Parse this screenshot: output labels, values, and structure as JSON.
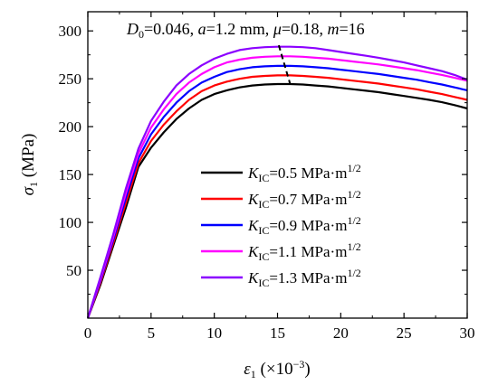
{
  "chart_data": {
    "type": "line",
    "xlabel": {
      "sym": "ε",
      "sub": "1",
      "unit": " (×10",
      "exp": "−3",
      "close": ")"
    },
    "ylabel": {
      "sym": "σ",
      "sub": "1",
      "unit": " (MPa)"
    },
    "xlim": [
      0,
      30
    ],
    "ylim": [
      0,
      320
    ],
    "xticks": [
      0,
      5,
      10,
      15,
      20,
      25,
      30
    ],
    "yticks": [
      50,
      100,
      150,
      200,
      250,
      300
    ],
    "grid": false,
    "legend_position": "center-right",
    "annotation": {
      "d0_sym": "D",
      "d0_sub": "0",
      "d0_val": "=0.046, ",
      "a_sym": "a",
      "a_val": "=1.2 mm, ",
      "mu_sym": "μ",
      "mu_val": "=0.18, ",
      "m_sym": "m",
      "m_val": "=16"
    },
    "legend_template": {
      "sym": "K",
      "sub": "IC",
      "unit": " MPa·m",
      "exp": "1/2"
    },
    "series": [
      {
        "name": "=0.5",
        "color": "#000000",
        "x": [
          0,
          1,
          2,
          3,
          4,
          5,
          6,
          7,
          8,
          9,
          10,
          11,
          12,
          13,
          14,
          15,
          16,
          17,
          18,
          19,
          20,
          21,
          22,
          23,
          24,
          25,
          26,
          27,
          28,
          29,
          30
        ],
        "y": [
          0,
          35,
          75,
          115,
          158,
          178,
          194,
          208,
          219,
          228,
          234,
          238,
          241,
          243,
          244,
          244.5,
          244.5,
          244,
          243,
          242,
          240.5,
          239,
          237.5,
          236,
          234,
          232,
          230,
          228,
          225.5,
          222.5,
          219
        ]
      },
      {
        "name": "=0.7",
        "color": "#ff0000",
        "x": [
          0,
          1,
          2,
          3,
          4,
          5,
          6,
          7,
          8,
          9,
          10,
          11,
          12,
          13,
          14,
          15,
          16,
          17,
          18,
          19,
          20,
          21,
          22,
          23,
          24,
          25,
          26,
          27,
          28,
          29,
          30
        ],
        "y": [
          0,
          37,
          78,
          120,
          162,
          185,
          202,
          216,
          228,
          237,
          243,
          247,
          250,
          252,
          253,
          253.5,
          253.5,
          253,
          252,
          251,
          249.5,
          248,
          246.5,
          245,
          243,
          241,
          239,
          236.5,
          234,
          231,
          228
        ]
      },
      {
        "name": "=0.9",
        "color": "#0000ff",
        "x": [
          0,
          1,
          2,
          3,
          4,
          5,
          6,
          7,
          8,
          9,
          10,
          11,
          12,
          13,
          14,
          15,
          16,
          17,
          18,
          19,
          20,
          21,
          22,
          23,
          24,
          25,
          26,
          27,
          28,
          29,
          30
        ],
        "y": [
          0,
          39,
          81,
          125,
          167,
          192,
          210,
          225,
          237,
          246,
          252,
          257,
          260,
          262,
          263,
          263.5,
          263.5,
          263,
          262,
          261,
          259.5,
          258,
          256.5,
          255,
          253,
          251,
          249,
          246.5,
          244,
          241,
          238
        ]
      },
      {
        "name": "=1.1",
        "color": "#ff00ff",
        "x": [
          0,
          1,
          2,
          3,
          4,
          5,
          6,
          7,
          8,
          9,
          10,
          11,
          12,
          13,
          14,
          15,
          16,
          17,
          18,
          19,
          20,
          21,
          22,
          23,
          24,
          25,
          26,
          27,
          28,
          29,
          30
        ],
        "y": [
          0,
          41,
          84,
          130,
          172,
          199,
          218,
          234,
          246,
          255,
          262,
          267,
          270,
          272,
          273,
          273.5,
          273.5,
          273,
          272,
          271,
          269.5,
          268,
          266.5,
          265,
          263,
          261,
          259,
          256.5,
          254,
          251,
          248
        ]
      },
      {
        "name": "=1.3",
        "color": "#8b00ff",
        "x": [
          0,
          1,
          2,
          3,
          4,
          5,
          6,
          7,
          8,
          9,
          10,
          11,
          12,
          13,
          14,
          15,
          16,
          17,
          18,
          19,
          20,
          21,
          22,
          23,
          24,
          25,
          26,
          27,
          28,
          29,
          30
        ],
        "y": [
          0,
          43,
          87,
          135,
          177,
          206,
          226,
          243,
          255,
          264,
          271,
          276,
          280,
          282,
          283,
          283.5,
          283.5,
          283,
          282,
          280,
          278,
          276,
          274,
          272,
          269.5,
          267,
          264,
          261,
          258,
          254,
          249
        ]
      }
    ],
    "peak_line": {
      "style": "dashed",
      "color": "#000000",
      "x": [
        15.1,
        16.0
      ],
      "y": [
        285,
        244.5
      ]
    }
  }
}
